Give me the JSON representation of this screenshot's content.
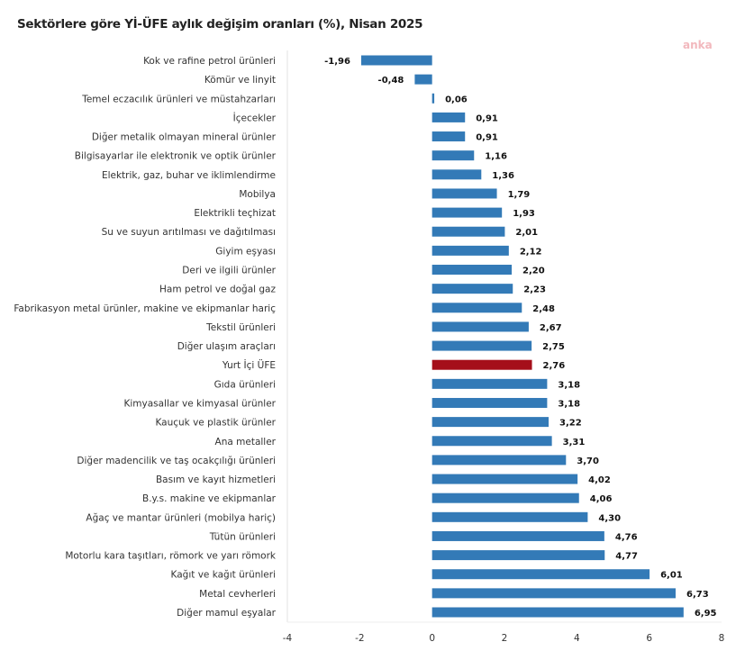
{
  "chart_data": {
    "type": "bar",
    "orientation": "horizontal",
    "title": "Sektörlere göre Yİ-ÜFE aylık değişim oranları (%), Nisan 2025",
    "watermark": "anka",
    "categories": [
      "Kok ve rafine petrol ürünleri",
      "Kömür ve linyit",
      "Temel eczacılık ürünleri ve müstahzarları",
      "İçecekler",
      "Diğer metalik olmayan mineral ürünler",
      "Bilgisayarlar ile elektronik ve optik ürünler",
      "Elektrik, gaz, buhar ve iklimlendirme",
      "Mobilya",
      "Elektrikli teçhizat",
      "Su ve suyun arıtılması ve dağıtılması",
      "Giyim eşyası",
      "Deri ve ilgili ürünler",
      "Ham petrol ve doğal gaz",
      "Fabrikasyon metal ürünler, makine ve ekipmanlar hariç",
      "Tekstil ürünleri",
      "Diğer ulaşım araçları",
      "Yurt İçi ÜFE",
      "Gıda ürünleri",
      "Kimyasallar ve kimyasal ürünler",
      "Kauçuk ve plastik ürünler",
      "Ana metaller",
      "Diğer madencilik ve taş ocakçılığı ürünleri",
      "Basım ve kayıt hizmetleri",
      "B.y.s. makine ve ekipmanlar",
      "Ağaç ve mantar ürünleri (mobilya hariç)",
      "Tütün ürünleri",
      "Motorlu kara taşıtları, römork ve yarı römork",
      "Kağıt ve kağıt ürünleri",
      "Metal cevherleri",
      "Diğer mamul eşyalar"
    ],
    "values": [
      -1.96,
      -0.48,
      0.06,
      0.91,
      0.91,
      1.16,
      1.36,
      1.79,
      1.93,
      2.01,
      2.12,
      2.2,
      2.23,
      2.48,
      2.67,
      2.75,
      2.76,
      3.18,
      3.18,
      3.22,
      3.31,
      3.7,
      4.02,
      4.06,
      4.3,
      4.76,
      4.77,
      6.01,
      6.73,
      6.95
    ],
    "data_labels": [
      "-1,96",
      "-0,48",
      "0,06",
      "0,91",
      "0,91",
      "1,16",
      "1,36",
      "1,79",
      "1,93",
      "2,01",
      "2,12",
      "2,20",
      "2,23",
      "2,48",
      "2,67",
      "2,75",
      "2,76",
      "3,18",
      "3,18",
      "3,22",
      "3,31",
      "3,70",
      "4,02",
      "4,06",
      "4,30",
      "4,76",
      "4,77",
      "6,01",
      "6,73",
      "6,95"
    ],
    "highlight_category": "Yurt İçi ÜFE",
    "xlim": [
      -4,
      8
    ],
    "xticks": [
      "-4",
      "-2",
      "0",
      "2",
      "4",
      "6",
      "8"
    ],
    "xtick_values": [
      -4,
      -2,
      0,
      2,
      4,
      6,
      8
    ],
    "grid": false,
    "colors": {
      "bar": "#337ab7",
      "highlight": "#a50f1a"
    }
  }
}
